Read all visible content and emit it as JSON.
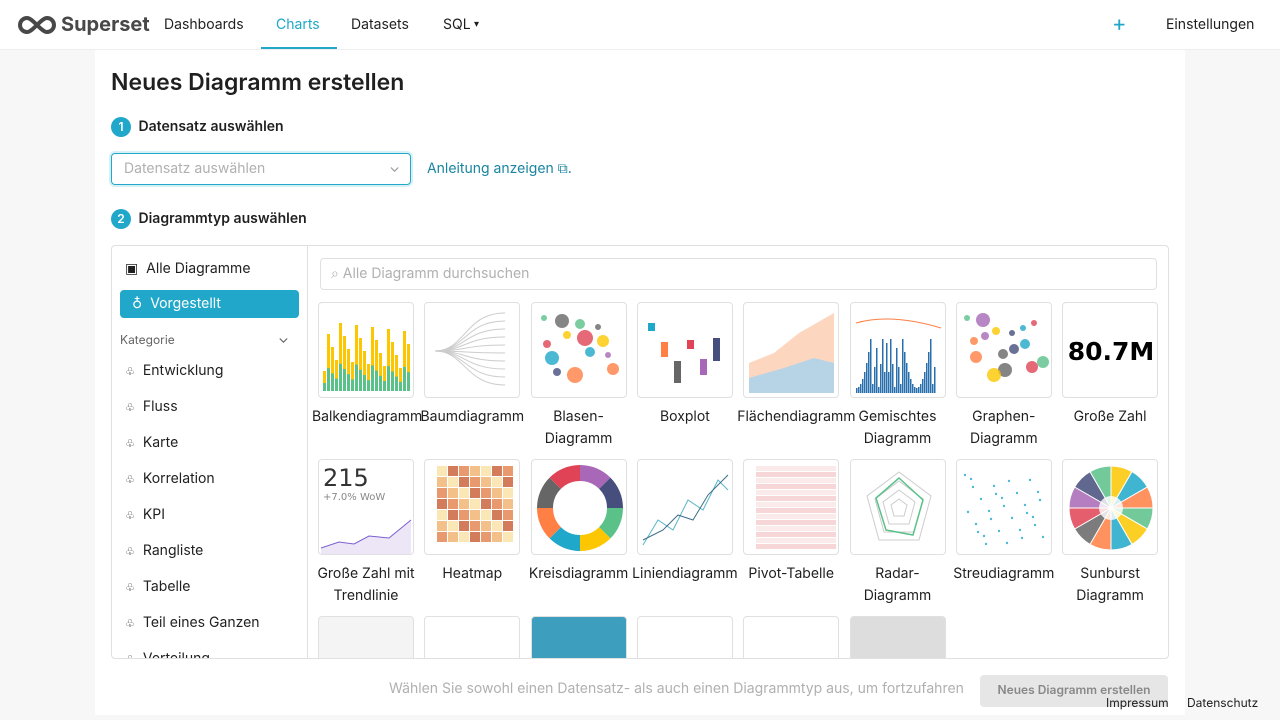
{
  "nav": {
    "logo": "Superset",
    "items": [
      "Dashboards",
      "Charts",
      "Datasets",
      "SQL"
    ],
    "settings": "Einstellungen"
  },
  "page": {
    "title": "Neues Diagramm erstellen",
    "step1": {
      "number": 1,
      "label": "Datensatz auswählen",
      "placeholder": "Datensatz auswählen",
      "link": "Anleitung anzeigen"
    },
    "step2": {
      "number": 2,
      "label": "Diagrammtyp auswählen"
    }
  },
  "sidebar": {
    "all": "Alle Diagramme",
    "featured": "Vorgestellt",
    "category_header": "Kategorie",
    "categories": [
      "Entwicklung",
      "Fluss",
      "Karte",
      "Korrelation",
      "KPI",
      "Rangliste",
      "Tabelle",
      "Teil eines Ganzen",
      "Verteilung"
    ]
  },
  "search": {
    "placeholder": "Alle Diagramm durchsuchen"
  },
  "charts": [
    "Balkendiagramm",
    "Baumdiagramm",
    "Blasen-Diagramm",
    "Boxplot",
    "Flächendiagramm",
    "Gemischtes Diagramm",
    "Graphen-Diagramm",
    "Große Zahl",
    "Große Zahl mit Trendlinie",
    "Heatmap",
    "Kreisdiagramm",
    "Liniendiagramm",
    "Pivot-Tabelle",
    "Radar-Diagramm",
    "Streudiagramm",
    "Sunburst Diagramm"
  ],
  "thumbnails": {
    "big_number": "80.7M",
    "trend_number": "215",
    "trend_delta": "+7.0% WoW"
  },
  "footer": {
    "hint": "Wählen Sie sowohl einen Datensatz- als auch einen Diagrammtyp aus, um fortzufahren",
    "button": "Neues Diagramm erstellen",
    "links": [
      "Impressum",
      "Datenschutz"
    ]
  }
}
